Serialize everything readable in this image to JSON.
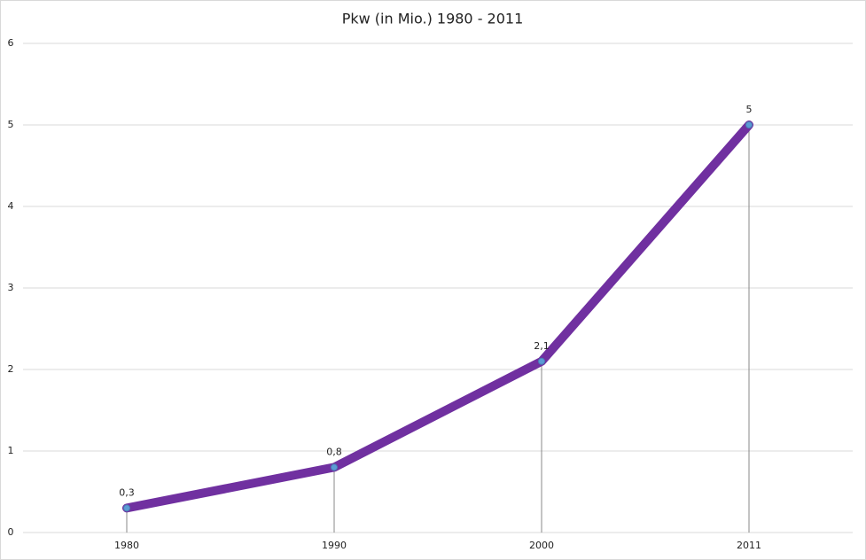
{
  "chart_data": {
    "type": "line",
    "title": "Pkw (in Mio.) 1980 - 2011",
    "categories": [
      "1980",
      "1990",
      "2000",
      "2011"
    ],
    "series": [
      {
        "color": "#7030a0",
        "marker_color": "#5b9bd5",
        "values": [
          0.3,
          0.8,
          2.1,
          5
        ],
        "value_labels": [
          "0,3",
          "0,8",
          "2,1",
          "5"
        ]
      }
    ],
    "ylim": [
      0,
      6
    ],
    "yticks": [
      0,
      1,
      2,
      3,
      4,
      5,
      6
    ],
    "grid": true,
    "drop_lines": true
  }
}
